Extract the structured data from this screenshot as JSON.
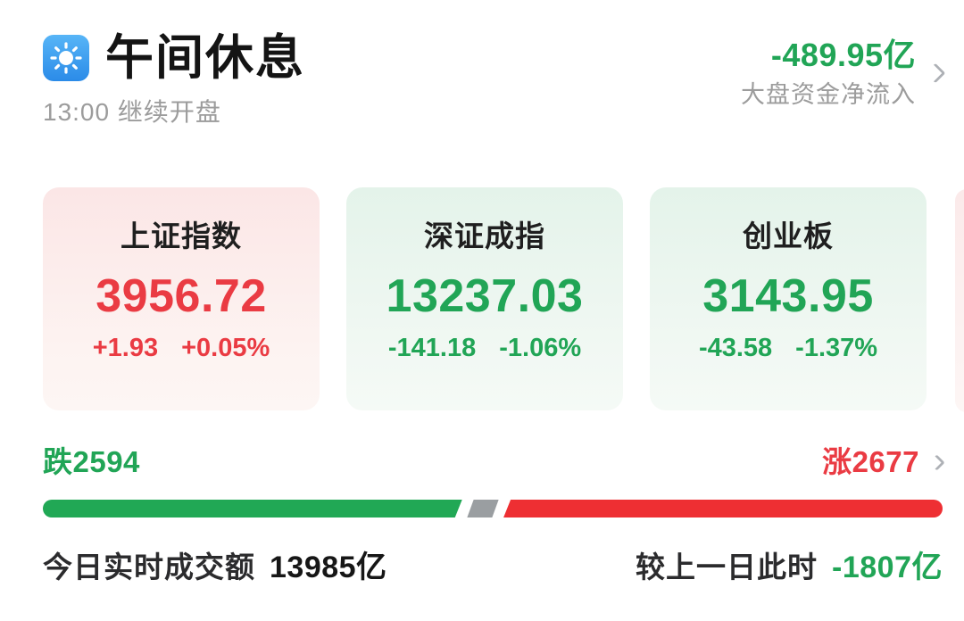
{
  "header": {
    "title": "午间休息",
    "subtitle_time": "13:00",
    "subtitle_text": "继续开盘",
    "net_inflow_value": "-489.95亿",
    "net_inflow_label": "大盘资金净流入"
  },
  "indices": [
    {
      "name": "上证指数",
      "value": "3956.72",
      "change": "+1.93",
      "change_pct": "+0.05%",
      "trend": "up"
    },
    {
      "name": "深证成指",
      "value": "13237.03",
      "change": "-141.18",
      "change_pct": "-1.06%",
      "trend": "down"
    },
    {
      "name": "创业板",
      "value": "3143.95",
      "change": "-43.58",
      "change_pct": "-1.37%",
      "trend": "down"
    }
  ],
  "breadth": {
    "down_label": "跌2594",
    "up_label": "涨2677",
    "down_count": 2594,
    "up_count": 2677,
    "bar": {
      "down_pct": 46.6,
      "neutral_left_pct": 47.5,
      "neutral_pct": 2.8,
      "up_left_pct": 51.2
    }
  },
  "turnover": {
    "today_label": "今日实时成交额",
    "today_value": "13985亿",
    "vs_label": "较上一日此时",
    "vs_value": "-1807亿"
  },
  "icons": {
    "app_icon": "sun-icon",
    "header_chevron": "chevron-right-icon",
    "breadth_chevron": "chevron-right-icon"
  },
  "colors": {
    "up_red": "#EA3B43",
    "bar_red": "#EE2F33",
    "down_green": "#21A556",
    "bar_green": "#21A855",
    "neutral_gray": "#9A9EA1",
    "icon_blue": "#3D9FF0",
    "muted_text": "#9C9C9C",
    "dark_text": "#1C1C1C"
  }
}
